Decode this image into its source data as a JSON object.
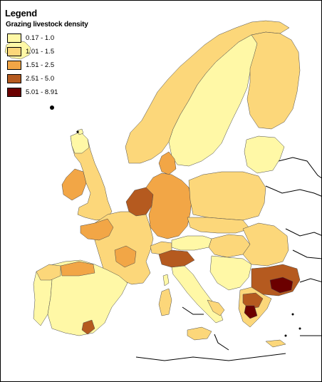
{
  "legend": {
    "title": "Legend",
    "subtitle": "Grazing livestock density",
    "items": [
      {
        "label": "0.17 - 1.0",
        "color": "#FFF8A6"
      },
      {
        "label": "1.01 - 1.5",
        "color": "#FCD77A"
      },
      {
        "label": "1.51 - 2.5",
        "color": "#F2A646"
      },
      {
        "label": "2.51 - 5.0",
        "color": "#B55A1F"
      },
      {
        "label": "5.01 - 8.91",
        "color": "#6B0000"
      }
    ]
  },
  "colors": {
    "background": "#FFFFFF",
    "outline": "#000000",
    "border_lines": "#3A3A3A"
  }
}
